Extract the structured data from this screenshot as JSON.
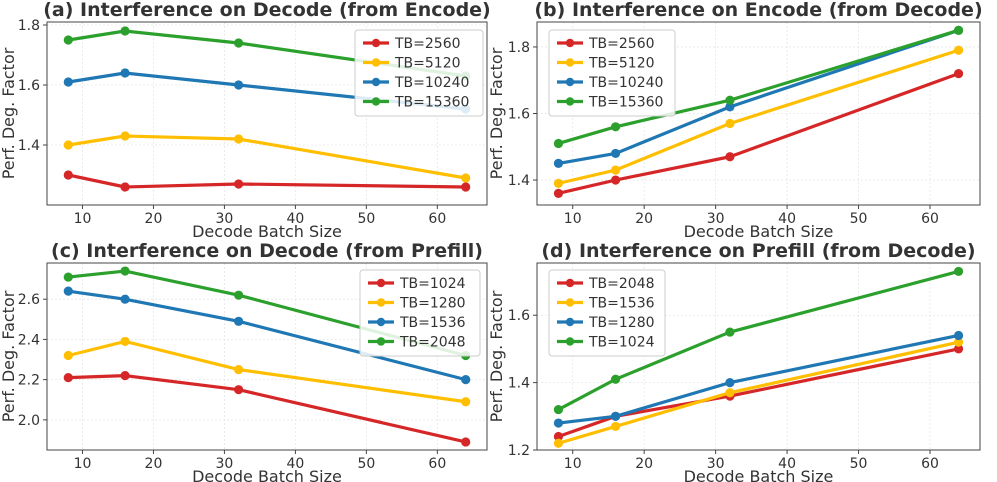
{
  "colors": {
    "red": "#d62728",
    "yellow": "#ffbf00",
    "blue": "#1f77b4",
    "green": "#2ca02c"
  },
  "chart_data": [
    {
      "id": "a",
      "type": "line",
      "title": "(a) Interference on Decode (from Encode)",
      "xlabel": "Decode Batch Size",
      "ylabel": "Perf. Deg. Factor",
      "x": [
        8,
        16,
        32,
        64
      ],
      "xlim": [
        5,
        67
      ],
      "ylim": [
        1.2,
        1.81
      ],
      "xticks": [
        10,
        20,
        30,
        40,
        50,
        60
      ],
      "yticks": [
        1.4,
        1.6,
        1.8
      ],
      "ytick_decimals": 1,
      "grid": true,
      "legend_position": "top-right",
      "series": [
        {
          "name": "TB=2560",
          "color": "red",
          "values": [
            1.3,
            1.26,
            1.27,
            1.26
          ]
        },
        {
          "name": "TB=5120",
          "color": "yellow",
          "values": [
            1.4,
            1.43,
            1.42,
            1.29
          ]
        },
        {
          "name": "TB=10240",
          "color": "blue",
          "values": [
            1.61,
            1.64,
            1.6,
            1.52
          ]
        },
        {
          "name": "TB=15360",
          "color": "green",
          "values": [
            1.75,
            1.78,
            1.74,
            1.63
          ]
        }
      ]
    },
    {
      "id": "b",
      "type": "line",
      "title": "(b) Interference on Encode (from Decode)",
      "xlabel": "Decode Batch Size",
      "ylabel": "Perf. Deg. Factor",
      "x": [
        8,
        16,
        32,
        64
      ],
      "xlim": [
        5,
        67
      ],
      "ylim": [
        1.325,
        1.875
      ],
      "xticks": [
        10,
        20,
        30,
        40,
        50,
        60
      ],
      "yticks": [
        1.4,
        1.6,
        1.8
      ],
      "ytick_decimals": 1,
      "grid": true,
      "legend_position": "top-left",
      "series": [
        {
          "name": "TB=2560",
          "color": "red",
          "values": [
            1.36,
            1.4,
            1.47,
            1.72
          ]
        },
        {
          "name": "TB=5120",
          "color": "yellow",
          "values": [
            1.39,
            1.43,
            1.57,
            1.79
          ]
        },
        {
          "name": "TB=10240",
          "color": "blue",
          "values": [
            1.45,
            1.48,
            1.62,
            1.85
          ]
        },
        {
          "name": "TB=15360",
          "color": "green",
          "values": [
            1.51,
            1.56,
            1.64,
            1.85
          ]
        }
      ]
    },
    {
      "id": "c",
      "type": "line",
      "title": "(c) Interference on Decode (from Prefill)",
      "xlabel": "Decode Batch Size",
      "ylabel": "Perf. Deg. Factor",
      "x": [
        8,
        16,
        32,
        64
      ],
      "xlim": [
        5,
        67
      ],
      "ylim": [
        1.85,
        2.78
      ],
      "xticks": [
        10,
        20,
        30,
        40,
        50,
        60
      ],
      "yticks": [
        2.0,
        2.2,
        2.4,
        2.6
      ],
      "ytick_decimals": 1,
      "grid": true,
      "legend_position": "top-right",
      "series": [
        {
          "name": "TB=1024",
          "color": "red",
          "values": [
            2.21,
            2.22,
            2.15,
            1.89
          ]
        },
        {
          "name": "TB=1280",
          "color": "yellow",
          "values": [
            2.32,
            2.39,
            2.25,
            2.09
          ]
        },
        {
          "name": "TB=1536",
          "color": "blue",
          "values": [
            2.64,
            2.6,
            2.49,
            2.2
          ]
        },
        {
          "name": "TB=2048",
          "color": "green",
          "values": [
            2.71,
            2.74,
            2.62,
            2.32
          ]
        }
      ]
    },
    {
      "id": "d",
      "type": "line",
      "title": "(d) Interference on Prefill (from Decode)",
      "xlabel": "Decode Batch Size",
      "ylabel": "Perf. Deg. Factor",
      "x": [
        8,
        16,
        32,
        64
      ],
      "xlim": [
        5,
        67
      ],
      "ylim": [
        1.2,
        1.755
      ],
      "xticks": [
        10,
        20,
        30,
        40,
        50,
        60
      ],
      "yticks": [
        1.2,
        1.4,
        1.6
      ],
      "ytick_decimals": 1,
      "grid": true,
      "legend_position": "top-left",
      "series": [
        {
          "name": "TB=2048",
          "color": "red",
          "values": [
            1.24,
            1.3,
            1.36,
            1.5
          ]
        },
        {
          "name": "TB=1536",
          "color": "yellow",
          "values": [
            1.22,
            1.27,
            1.37,
            1.52
          ]
        },
        {
          "name": "TB=1280",
          "color": "blue",
          "values": [
            1.28,
            1.3,
            1.4,
            1.54
          ]
        },
        {
          "name": "TB=1024",
          "color": "green",
          "values": [
            1.32,
            1.41,
            1.55,
            1.73
          ]
        }
      ]
    }
  ]
}
